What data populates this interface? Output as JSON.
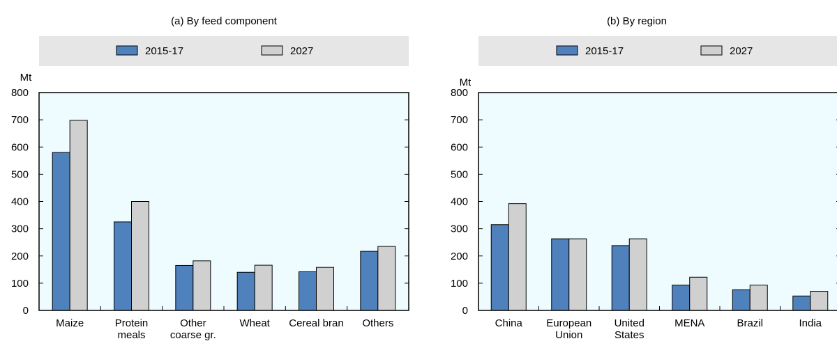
{
  "chart_data": [
    {
      "type": "bar",
      "title": "(a) By feed component",
      "ylabel": "Mt",
      "xlabel": "",
      "ylim": [
        0,
        800
      ],
      "yticks": [
        0,
        100,
        200,
        300,
        400,
        500,
        600,
        700,
        800
      ],
      "grid": false,
      "legend_placement": "top",
      "categories": [
        [
          "Maize"
        ],
        [
          "Protein",
          "meals"
        ],
        [
          "Other",
          "coarse gr."
        ],
        [
          "Wheat"
        ],
        [
          "Cereal bran"
        ],
        [
          "Others"
        ]
      ],
      "series": [
        {
          "name": "2015-17",
          "values": [
            580,
            325,
            165,
            140,
            142,
            217
          ]
        },
        {
          "name": "2027",
          "values": [
            698,
            400,
            182,
            166,
            158,
            235
          ]
        }
      ]
    },
    {
      "type": "bar",
      "title": "(b) By region",
      "ylabel": "Mt",
      "xlabel": "",
      "ylim": [
        0,
        800
      ],
      "yticks": [
        0,
        100,
        200,
        300,
        400,
        500,
        600,
        700,
        800
      ],
      "grid": false,
      "legend_placement": "top",
      "categories": [
        [
          "China"
        ],
        [
          "European",
          "Union"
        ],
        [
          "United",
          "States"
        ],
        [
          "MENA"
        ],
        [
          "Brazil"
        ],
        [
          "India"
        ]
      ],
      "series": [
        {
          "name": "2015-17",
          "values": [
            315,
            263,
            238,
            93,
            76,
            53
          ]
        },
        {
          "name": "2027",
          "values": [
            392,
            263,
            263,
            122,
            93,
            70
          ]
        }
      ]
    }
  ],
  "colors": {
    "series": [
      "#4f81bd",
      "#d0d0d0"
    ],
    "plot_bg": "#eefcff",
    "legend_bg": "#e6e6e6"
  }
}
